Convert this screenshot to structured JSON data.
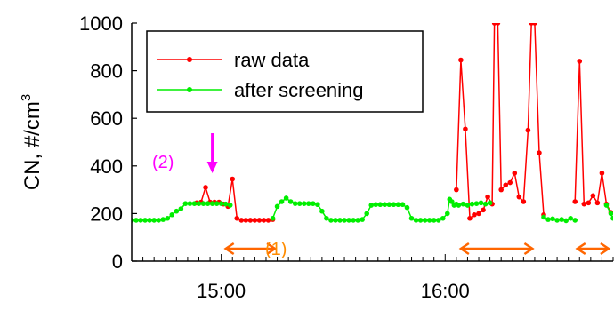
{
  "chart_data": {
    "type": "line",
    "ylabel": "CN, #/cm",
    "ylabel_superscript": "3",
    "ylim": [
      0,
      1000
    ],
    "y_ticks": [
      0,
      200,
      400,
      600,
      800,
      1000
    ],
    "x_range_minutes": [
      14.6,
      16.75
    ],
    "x_tick_labels": [
      {
        "label": "15:00",
        "value": 15.0
      },
      {
        "label": "16:00",
        "value": 16.0
      }
    ],
    "x_minor_step": 0.05,
    "legend": {
      "position": "top-left",
      "items": [
        {
          "label": "raw data",
          "series": "raw"
        },
        {
          "label": "after screening",
          "series": "screened"
        }
      ]
    },
    "colors": {
      "raw": "#ff0000",
      "screened": "#00ee00",
      "marker_arrow": "#ff00ff",
      "range_arrow": "#ff6600",
      "annotation_1": "#ff8c00",
      "annotation_2": "#ff00ff"
    },
    "series": [
      {
        "id": "raw",
        "points": [
          [
            14.89,
            245
          ],
          [
            14.91,
            248
          ],
          [
            14.93,
            310
          ],
          [
            14.95,
            248
          ],
          [
            14.97,
            248
          ],
          [
            14.99,
            248
          ],
          [
            15.01,
            240
          ],
          [
            15.03,
            230
          ],
          [
            15.05,
            345
          ],
          [
            15.07,
            180
          ],
          [
            15.09,
            172
          ],
          [
            15.11,
            172
          ],
          [
            15.13,
            172
          ],
          [
            15.15,
            172
          ],
          [
            15.17,
            172
          ],
          [
            15.19,
            172
          ],
          [
            15.21,
            172
          ],
          [
            15.23,
            175
          ],
          [
            16.05,
            300
          ],
          [
            16.07,
            845
          ],
          [
            16.09,
            555
          ],
          [
            16.11,
            180
          ],
          [
            16.13,
            195
          ],
          [
            16.15,
            200
          ],
          [
            16.17,
            215
          ],
          [
            16.19,
            270
          ],
          [
            16.21,
            240
          ],
          [
            16.22,
            1000
          ],
          [
            16.235,
            1000
          ],
          [
            16.25,
            300
          ],
          [
            16.27,
            320
          ],
          [
            16.29,
            330
          ],
          [
            16.31,
            370
          ],
          [
            16.33,
            270
          ],
          [
            16.35,
            250
          ],
          [
            16.37,
            550
          ],
          [
            16.385,
            1000
          ],
          [
            16.4,
            1000
          ],
          [
            16.42,
            455
          ],
          [
            16.44,
            195
          ],
          [
            16.58,
            250
          ],
          [
            16.6,
            840
          ],
          [
            16.62,
            240
          ],
          [
            16.64,
            245
          ],
          [
            16.66,
            275
          ],
          [
            16.68,
            245
          ],
          [
            16.7,
            370
          ],
          [
            16.72,
            240
          ],
          [
            16.74,
            205
          ]
        ]
      },
      {
        "id": "screened",
        "points": [
          [
            14.6,
            172
          ],
          [
            14.62,
            172
          ],
          [
            14.64,
            172
          ],
          [
            14.66,
            172
          ],
          [
            14.68,
            172
          ],
          [
            14.7,
            172
          ],
          [
            14.72,
            172
          ],
          [
            14.74,
            175
          ],
          [
            14.76,
            180
          ],
          [
            14.78,
            195
          ],
          [
            14.8,
            210
          ],
          [
            14.82,
            220
          ],
          [
            14.84,
            242
          ],
          [
            14.86,
            242
          ],
          [
            14.88,
            242
          ],
          [
            14.9,
            242
          ],
          [
            14.92,
            242
          ],
          [
            14.94,
            242
          ],
          [
            14.96,
            242
          ],
          [
            14.98,
            242
          ],
          [
            15.0,
            242
          ],
          [
            15.02,
            240
          ],
          [
            15.04,
            235
          ],
          [
            15.23,
            180
          ],
          [
            15.25,
            230
          ],
          [
            15.27,
            250
          ],
          [
            15.29,
            265
          ],
          [
            15.31,
            250
          ],
          [
            15.33,
            242
          ],
          [
            15.35,
            242
          ],
          [
            15.37,
            242
          ],
          [
            15.39,
            242
          ],
          [
            15.41,
            242
          ],
          [
            15.43,
            238
          ],
          [
            15.45,
            210
          ],
          [
            15.47,
            180
          ],
          [
            15.49,
            172
          ],
          [
            15.51,
            172
          ],
          [
            15.53,
            172
          ],
          [
            15.55,
            172
          ],
          [
            15.57,
            172
          ],
          [
            15.59,
            172
          ],
          [
            15.61,
            172
          ],
          [
            15.63,
            175
          ],
          [
            15.65,
            200
          ],
          [
            15.67,
            235
          ],
          [
            15.69,
            238
          ],
          [
            15.71,
            238
          ],
          [
            15.73,
            238
          ],
          [
            15.75,
            238
          ],
          [
            15.77,
            238
          ],
          [
            15.79,
            238
          ],
          [
            15.81,
            238
          ],
          [
            15.83,
            225
          ],
          [
            15.85,
            180
          ],
          [
            15.87,
            172
          ],
          [
            15.89,
            172
          ],
          [
            15.91,
            172
          ],
          [
            15.93,
            172
          ],
          [
            15.95,
            172
          ],
          [
            15.97,
            172
          ],
          [
            15.99,
            180
          ],
          [
            16.01,
            200
          ],
          [
            16.02,
            260
          ],
          [
            16.03,
            250
          ],
          [
            16.04,
            235
          ],
          [
            16.05,
            240
          ],
          [
            16.06,
            235
          ],
          [
            16.08,
            240
          ],
          [
            16.1,
            235
          ],
          [
            16.12,
            240
          ],
          [
            16.14,
            242
          ],
          [
            16.16,
            245
          ],
          [
            16.18,
            240
          ],
          [
            16.2,
            245
          ],
          [
            16.44,
            185
          ],
          [
            16.46,
            175
          ],
          [
            16.48,
            178
          ],
          [
            16.5,
            172
          ],
          [
            16.52,
            175
          ],
          [
            16.54,
            170
          ],
          [
            16.56,
            180
          ],
          [
            16.58,
            172
          ],
          [
            16.72,
            235
          ],
          [
            16.74,
            200
          ],
          [
            16.75,
            180
          ]
        ]
      }
    ],
    "annotations": [
      {
        "label": "(1)",
        "color_key": "annotation_1"
      },
      {
        "label": "(2)",
        "color_key": "annotation_2"
      }
    ],
    "range_arrows": [
      {
        "from": 15.02,
        "to": 15.24
      },
      {
        "from": 16.07,
        "to": 16.39
      },
      {
        "from": 16.59,
        "to": 16.73
      }
    ],
    "marker_arrow_x": 14.96
  }
}
